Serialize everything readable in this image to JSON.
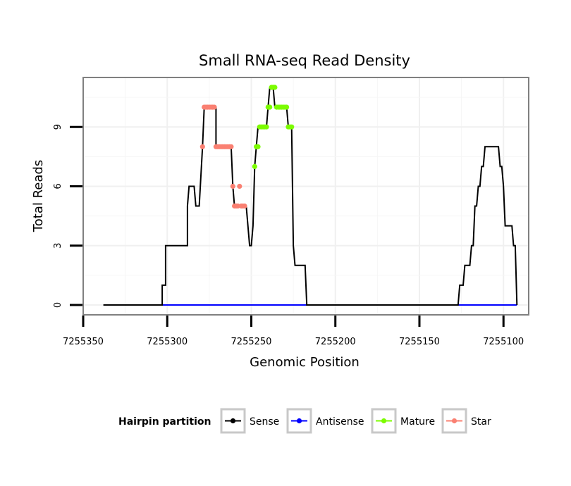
{
  "chart_data": {
    "type": "line",
    "title": "Small RNA-seq Read Density",
    "xlabel": "Genomic Position",
    "ylabel": "Total Reads",
    "xlim": [
      7255350,
      7255085
    ],
    "ylim": [
      -0.5,
      11.5
    ],
    "x_reversed": true,
    "grid": true,
    "x_ticks": [
      7255350,
      7255300,
      7255250,
      7255200,
      7255150,
      7255100
    ],
    "x_tick_labels": [
      "7255350",
      "7255300",
      "7255250",
      "7255200",
      "7255150",
      "7255100"
    ],
    "y_ticks": [
      0,
      3,
      6,
      9
    ],
    "y_tick_labels": [
      "0",
      "3",
      "6",
      "9"
    ],
    "legend": {
      "title": "Hairpin partition",
      "position": "bottom",
      "entries": [
        {
          "name": "Sense",
          "color": "#000000"
        },
        {
          "name": "Antisense",
          "color": "#0000ff"
        },
        {
          "name": "Mature",
          "color": "#7cfc00"
        },
        {
          "name": "Star",
          "color": "#fa8072"
        }
      ]
    },
    "series": [
      {
        "name": "Sense",
        "color": "#000000",
        "style": "line",
        "points": [
          [
            7255338,
            0
          ],
          [
            7255303,
            0
          ],
          [
            7255303,
            1
          ],
          [
            7255301,
            1
          ],
          [
            7255301,
            3
          ],
          [
            7255288,
            3
          ],
          [
            7255288,
            5
          ],
          [
            7255287,
            6
          ],
          [
            7255284,
            6
          ],
          [
            7255283,
            5
          ],
          [
            7255281,
            5
          ],
          [
            7255279,
            8
          ],
          [
            7255278,
            10
          ],
          [
            7255271,
            10
          ],
          [
            7255271,
            8
          ],
          [
            7255262,
            8
          ],
          [
            7255261,
            6
          ],
          [
            7255260,
            5
          ],
          [
            7255253,
            5
          ],
          [
            7255251,
            3
          ],
          [
            7255250,
            3
          ],
          [
            7255249,
            4
          ],
          [
            7255248,
            7
          ],
          [
            7255247,
            8
          ],
          [
            7255246,
            9
          ],
          [
            7255241,
            9
          ],
          [
            7255240,
            10
          ],
          [
            7255239,
            11
          ],
          [
            7255237,
            11
          ],
          [
            7255236,
            10
          ],
          [
            7255229,
            10
          ],
          [
            7255228,
            9
          ],
          [
            7255226,
            9
          ],
          [
            7255225,
            3
          ],
          [
            7255224,
            2
          ],
          [
            7255218,
            2
          ],
          [
            7255217,
            0
          ],
          [
            7255127,
            0
          ],
          [
            7255126,
            1
          ],
          [
            7255124,
            1
          ],
          [
            7255123,
            2
          ],
          [
            7255120,
            2
          ],
          [
            7255119,
            3
          ],
          [
            7255118,
            3
          ],
          [
            7255117,
            5
          ],
          [
            7255116,
            5
          ],
          [
            7255115,
            6
          ],
          [
            7255114,
            6
          ],
          [
            7255113,
            7
          ],
          [
            7255112,
            7
          ],
          [
            7255111,
            8
          ],
          [
            7255103,
            8
          ],
          [
            7255102,
            7
          ],
          [
            7255101,
            7
          ],
          [
            7255100,
            6
          ],
          [
            7255099,
            4
          ],
          [
            7255095,
            4
          ],
          [
            7255094,
            3
          ],
          [
            7255093,
            3
          ],
          [
            7255092,
            0
          ]
        ]
      },
      {
        "name": "Antisense",
        "color": "#0000ff",
        "style": "line",
        "points": [
          [
            7255303,
            0
          ],
          [
            7255217,
            0
          ],
          [
            7255127,
            0
          ],
          [
            7255092,
            0
          ]
        ]
      },
      {
        "name": "Mature",
        "color": "#7cfc00",
        "style": "points",
        "points": [
          [
            7255248,
            7
          ],
          [
            7255247,
            8
          ],
          [
            7255246,
            8
          ],
          [
            7255245,
            9
          ],
          [
            7255244,
            9
          ],
          [
            7255243,
            9
          ],
          [
            7255242,
            9
          ],
          [
            7255241,
            9
          ],
          [
            7255240,
            10
          ],
          [
            7255239,
            10
          ],
          [
            7255238,
            11
          ],
          [
            7255237,
            11
          ],
          [
            7255236,
            11
          ],
          [
            7255235,
            10
          ],
          [
            7255234,
            10
          ],
          [
            7255233,
            10
          ],
          [
            7255232,
            10
          ],
          [
            7255231,
            10
          ],
          [
            7255230,
            10
          ],
          [
            7255229,
            10
          ],
          [
            7255228,
            9
          ],
          [
            7255227,
            9
          ],
          [
            7255226,
            9
          ]
        ]
      },
      {
        "name": "Star",
        "color": "#fa8072",
        "style": "points",
        "points": [
          [
            7255279,
            8
          ],
          [
            7255278,
            10
          ],
          [
            7255277,
            10
          ],
          [
            7255276,
            10
          ],
          [
            7255275,
            10
          ],
          [
            7255274,
            10
          ],
          [
            7255273,
            10
          ],
          [
            7255272,
            10
          ],
          [
            7255271,
            8
          ],
          [
            7255270,
            8
          ],
          [
            7255269,
            8
          ],
          [
            7255268,
            8
          ],
          [
            7255267,
            8
          ],
          [
            7255266,
            8
          ],
          [
            7255265,
            8
          ],
          [
            7255264,
            8
          ],
          [
            7255263,
            8
          ],
          [
            7255262,
            8
          ],
          [
            7255261,
            6
          ],
          [
            7255260,
            5
          ],
          [
            7255259,
            5
          ],
          [
            7255258,
            5
          ],
          [
            7255257,
            6
          ],
          [
            7255256,
            5
          ],
          [
            7255255,
            5
          ],
          [
            7255254,
            5
          ]
        ]
      }
    ]
  }
}
